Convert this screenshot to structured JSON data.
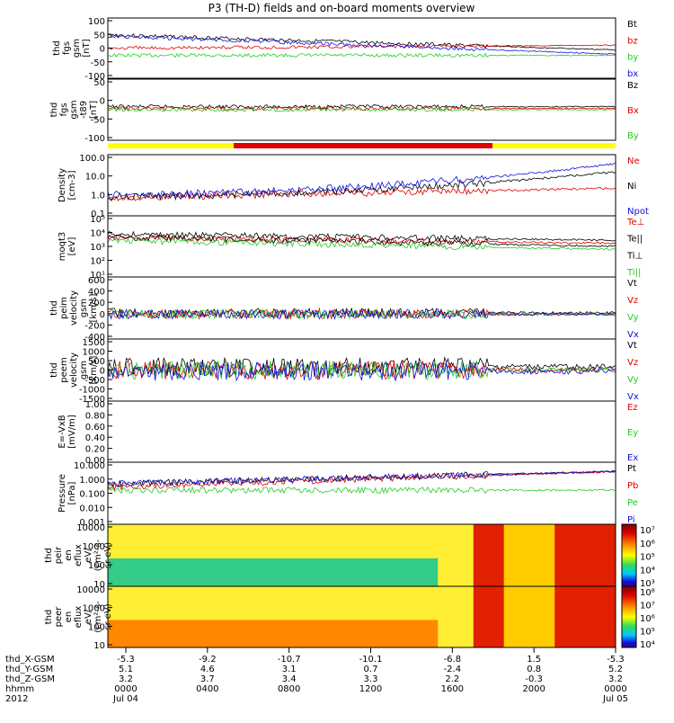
{
  "title": "P3 (TH-D) fields and on-board moments overview",
  "colors": {
    "black": "#000000",
    "red": "#e00000",
    "green": "#22cc22",
    "blue": "#1010e0",
    "yellow": "#ffff00"
  },
  "chart_data": {
    "type": "multi-panel time series",
    "x_labels": {
      "x_gsm": [
        "-5.3",
        "-9.2",
        "-10.7",
        "-10.1",
        "-6.8",
        "1.5",
        "-5.3"
      ],
      "y_gsm": [
        "5.1",
        "4.6",
        "3.1",
        "0.7",
        "-2.4",
        "0.8",
        "5.2"
      ],
      "z_gsm": [
        "3.2",
        "3.7",
        "3.4",
        "3.3",
        "2.2",
        "-0.3",
        "3.2"
      ],
      "hhmm": [
        "0000",
        "0400",
        "0800",
        "1200",
        "1600",
        "2000",
        "0000"
      ],
      "date_row": [
        "Jul 04",
        "",
        "",
        "",
        "",
        "",
        "Jul 05"
      ]
    },
    "row_labels": [
      "thd_X-GSM",
      "thd_Y-GSM",
      "thd_Z-GSM",
      "hhmm",
      "2012"
    ],
    "panels": [
      {
        "name": "fgs",
        "ylabel": [
          "thd",
          "fgs",
          "gsm",
          "[nT]"
        ],
        "ylim": [
          -100,
          100
        ],
        "ticks": [
          "100",
          "50",
          "0",
          "-50",
          "-100"
        ],
        "legend": [
          "Bt",
          "bz",
          "by",
          "bx"
        ]
      },
      {
        "name": "fgs-t89",
        "ylabel": [
          "thd",
          "fgs",
          "gsm",
          "-t89",
          "[nT]"
        ],
        "ylim": [
          -120,
          60
        ],
        "ticks": [
          "50",
          "0",
          "-50",
          "-100"
        ],
        "legend": [
          "Bz",
          "Bx",
          "By"
        ]
      },
      {
        "name": "density",
        "ylabel": [
          "Density",
          "[cm-3]"
        ],
        "scale": "log",
        "ticks": [
          "100.0",
          "10.0",
          "1.0",
          "0.1"
        ],
        "legend": [
          "Ne",
          "Ni",
          "Npot"
        ]
      },
      {
        "name": "temperature",
        "ylabel": [
          "moqt3",
          "[eV]"
        ],
        "scale": "log",
        "ticks": [
          "10⁵",
          "10⁴",
          "10³",
          "10²",
          "10¹"
        ],
        "legend": [
          "Te⊥",
          "Te||",
          "Ti⊥",
          "Ti||"
        ]
      },
      {
        "name": "peim-velocity",
        "ylabel": [
          "thd",
          "peim",
          "velocity",
          "gsm",
          "[km/s]"
        ],
        "ylim": [
          -400,
          600
        ],
        "ticks": [
          "600",
          "400",
          "200",
          "0",
          "-200",
          "-400"
        ],
        "legend": [
          "Vt",
          "Vz",
          "Vy",
          "Vx"
        ]
      },
      {
        "name": "peem-velocity",
        "ylabel": [
          "thd",
          "peem",
          "velocity",
          "gsm",
          "[km/s]"
        ],
        "ylim": [
          -1500,
          1500
        ],
        "ticks": [
          "1500",
          "1000",
          "500",
          "0",
          "-500",
          "-1000",
          "-1500"
        ],
        "legend": [
          "Vt",
          "Vz",
          "Vy",
          "Vx"
        ]
      },
      {
        "name": "vxb",
        "ylabel": [
          "E=-VxB",
          "[mV/m]"
        ],
        "ylim": [
          0,
          1
        ],
        "ticks": [
          "1.00",
          "0.80",
          "0.60",
          "0.40",
          "0.20",
          "0.00"
        ],
        "legend": [
          "Ez",
          "Ey",
          "Ex"
        ]
      },
      {
        "name": "pressure",
        "ylabel": [
          "Pressure",
          "[nPa]"
        ],
        "scale": "log",
        "ticks": [
          "10.000",
          "1.000",
          "0.100",
          "0.010",
          "0.001"
        ],
        "legend": [
          "Pt",
          "Pb",
          "Pe",
          "Pi"
        ]
      },
      {
        "name": "peir-spectrogram",
        "ylabel": [
          "thd",
          "peir",
          "en",
          "eflux",
          "eV/",
          "(cm²-s-",
          "sr-eV)"
        ],
        "scale": "log",
        "ticks": [
          "10000",
          "1000",
          "100",
          "10"
        ],
        "colorbar": [
          "10⁷",
          "10⁶",
          "10⁵",
          "10⁴",
          "10³"
        ]
      },
      {
        "name": "peer-spectrogram",
        "ylabel": [
          "thd",
          "peer",
          "en",
          "eflux",
          "eV/",
          "(cm²-s-",
          "sr-eV)"
        ],
        "scale": "log",
        "ticks": [
          "10000",
          "1000",
          "100",
          "10"
        ],
        "colorbar": [
          "10⁸",
          "10⁷",
          "10⁶",
          "10⁵",
          "10⁴"
        ]
      }
    ]
  }
}
